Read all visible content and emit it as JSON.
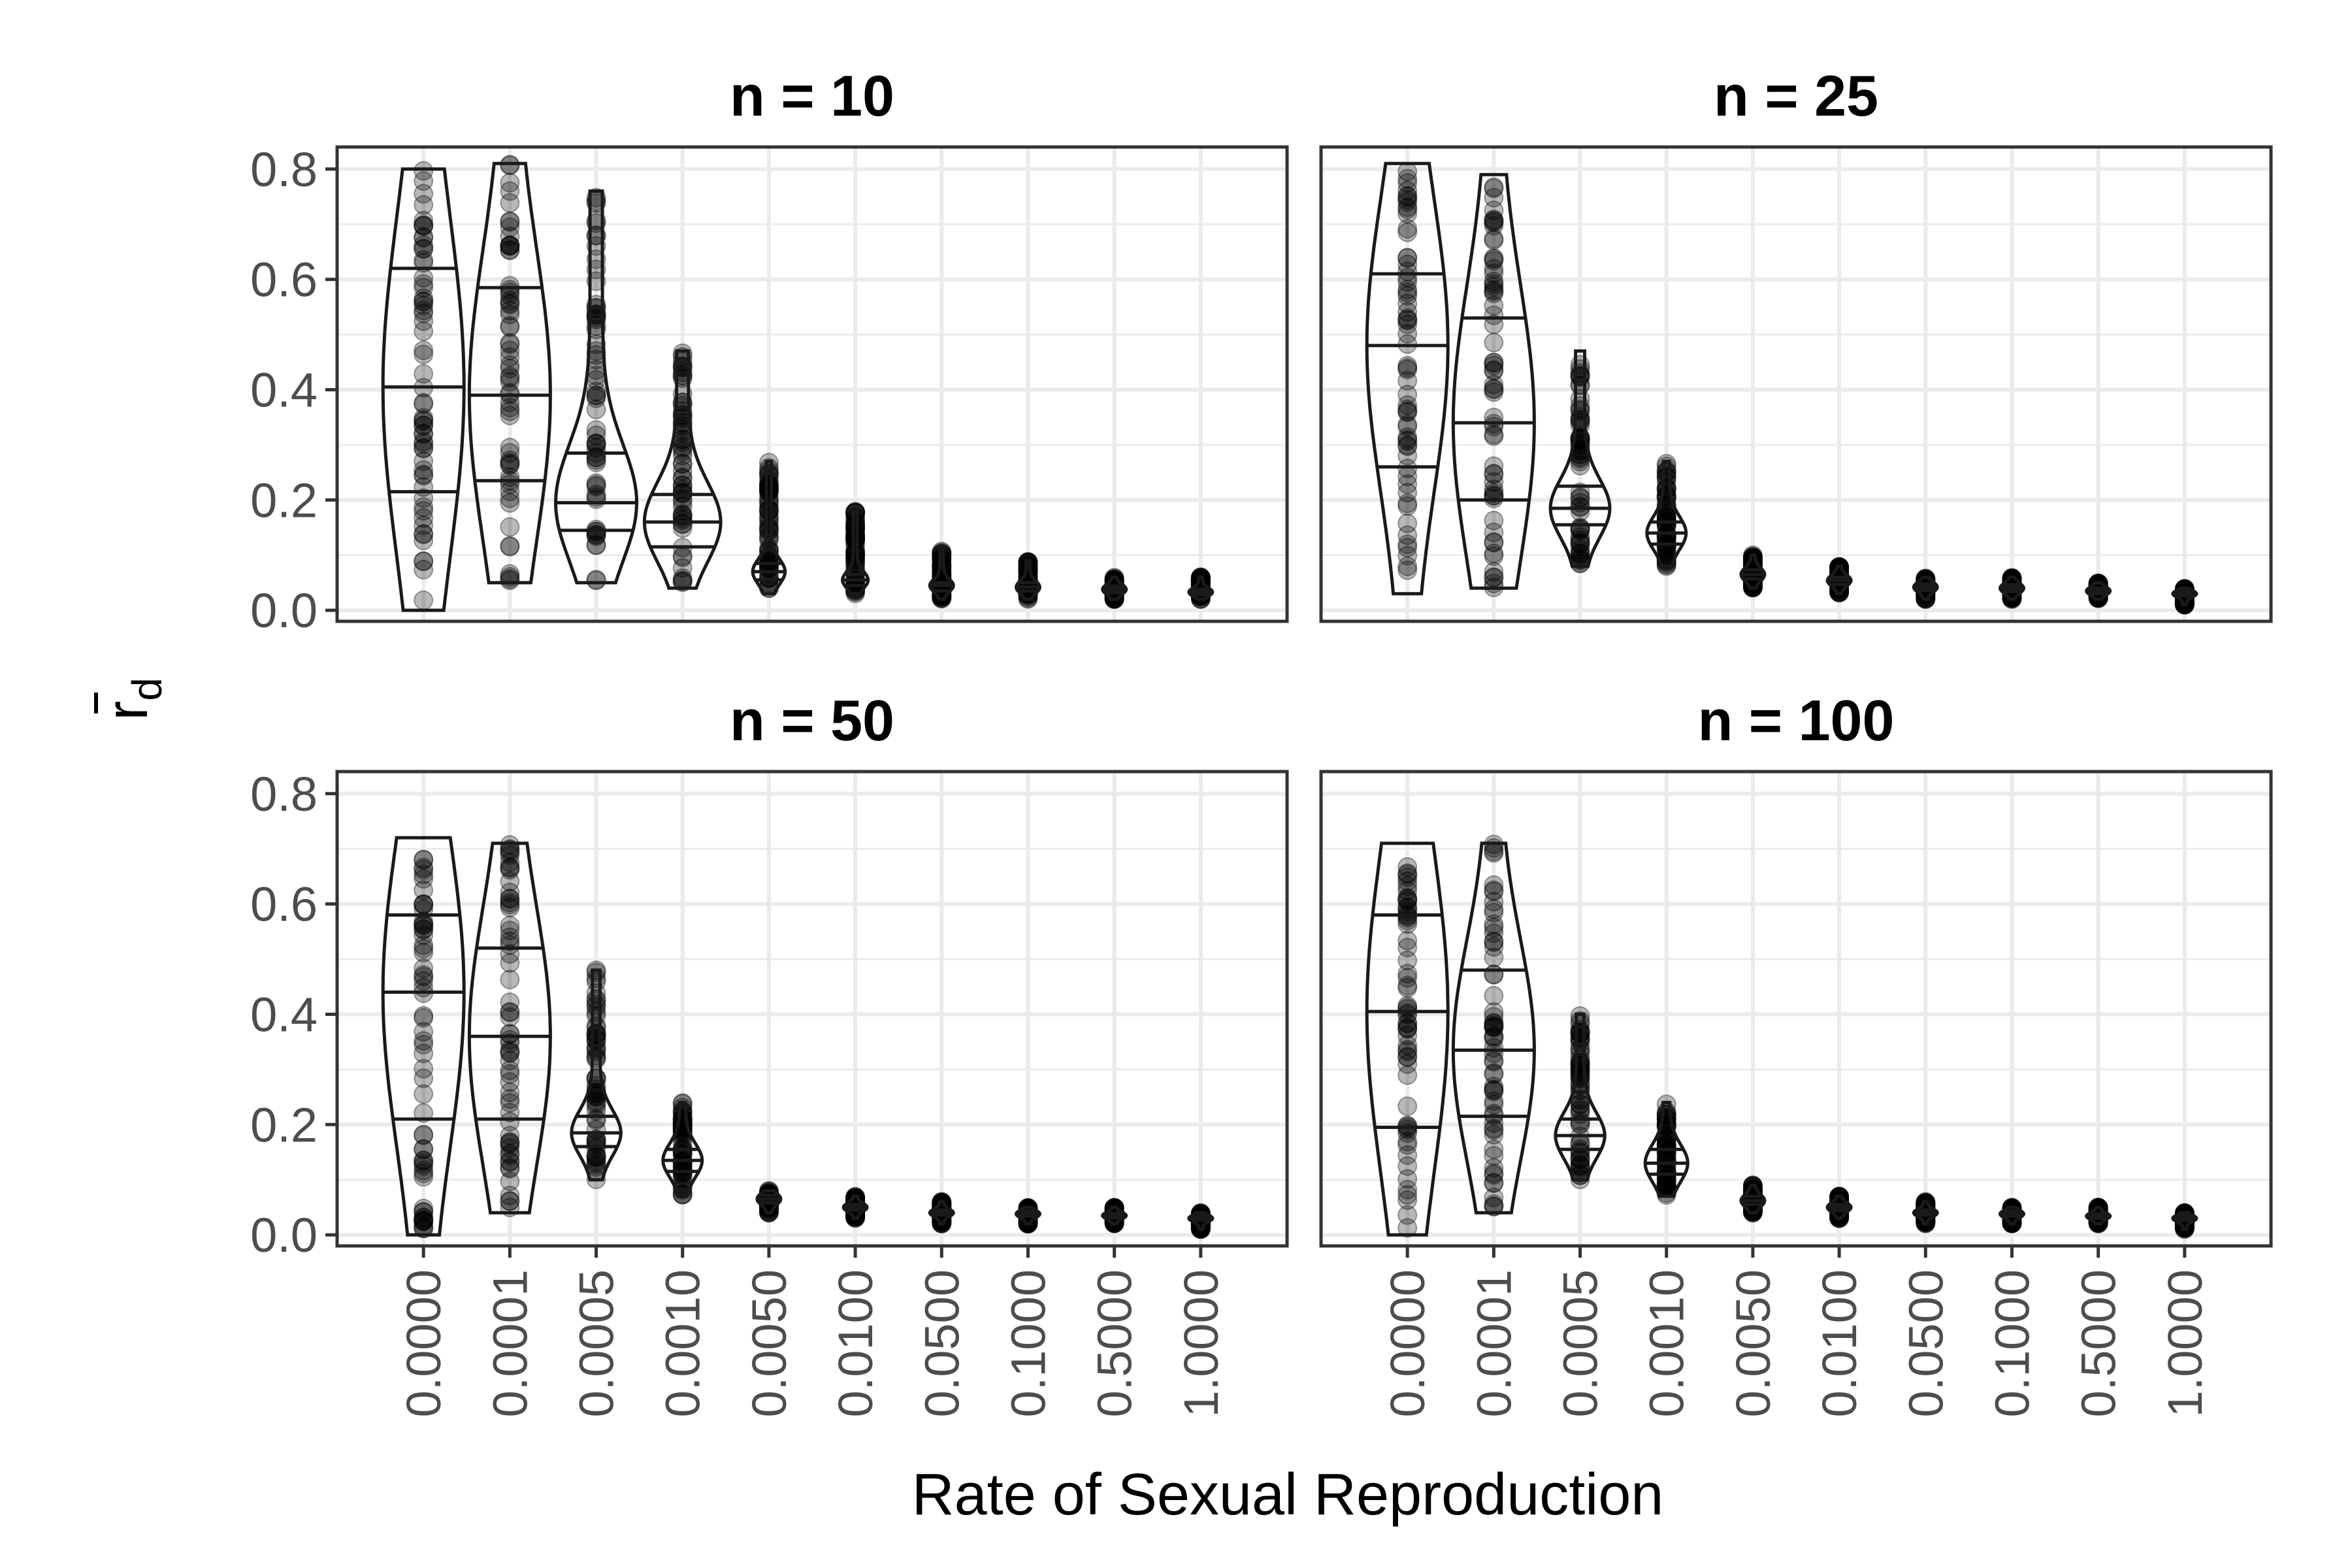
{
  "chart_data": {
    "type": "violin",
    "xlabel": "Rate of Sexual Reproduction",
    "ylabel": "r",
    "ylabel_subscript": "d",
    "ylim": [
      -0.02,
      0.84
    ],
    "yticks": [
      0.0,
      0.2,
      0.4,
      0.6,
      0.8
    ],
    "ytick_labels": [
      "0.0",
      "0.2",
      "0.4",
      "0.6",
      "0.8"
    ],
    "categories": [
      "0.0000",
      "0.0001",
      "0.0005",
      "0.0010",
      "0.0050",
      "0.0100",
      "0.0500",
      "0.1000",
      "0.5000",
      "1.0000"
    ],
    "grid": true,
    "legend": "none",
    "colors": {
      "violin_stroke": "#1a1a1a",
      "point": "#000000",
      "grid": "#ebebeb",
      "panel_border": "#333333",
      "text": "#4d4d4d"
    },
    "panels": [
      {
        "title": "n = 10",
        "violins": [
          {
            "min": 0.0,
            "max": 0.8,
            "quantiles": [
              0.215,
              0.405,
              0.62
            ]
          },
          {
            "min": 0.05,
            "max": 0.81,
            "quantiles": [
              0.235,
              0.39,
              0.585
            ]
          },
          {
            "min": 0.05,
            "max": 0.76,
            "quantiles": [
              0.145,
              0.195,
              0.285
            ]
          },
          {
            "min": 0.04,
            "max": 0.47,
            "quantiles": [
              0.115,
              0.16,
              0.21
            ]
          },
          {
            "min": 0.03,
            "max": 0.27,
            "quantiles": [
              0.055,
              0.07,
              0.085
            ]
          },
          {
            "min": 0.03,
            "max": 0.18,
            "quantiles": [
              0.045,
              0.055,
              0.065
            ]
          },
          {
            "min": 0.02,
            "max": 0.11,
            "quantiles": [
              0.035,
              0.045,
              0.05
            ]
          },
          {
            "min": 0.02,
            "max": 0.09,
            "quantiles": [
              0.035,
              0.042,
              0.05
            ]
          },
          {
            "min": 0.02,
            "max": 0.06,
            "quantiles": [
              0.032,
              0.038,
              0.044
            ]
          },
          {
            "min": 0.02,
            "max": 0.06,
            "quantiles": [
              0.028,
              0.033,
              0.038
            ]
          }
        ]
      },
      {
        "title": "n = 25",
        "violins": [
          {
            "min": 0.03,
            "max": 0.81,
            "quantiles": [
              0.26,
              0.48,
              0.61
            ]
          },
          {
            "min": 0.04,
            "max": 0.79,
            "quantiles": [
              0.2,
              0.34,
              0.53
            ]
          },
          {
            "min": 0.08,
            "max": 0.47,
            "quantiles": [
              0.155,
              0.185,
              0.225
            ]
          },
          {
            "min": 0.08,
            "max": 0.27,
            "quantiles": [
              0.12,
              0.14,
              0.16
            ]
          },
          {
            "min": 0.04,
            "max": 0.1,
            "quantiles": [
              0.057,
              0.065,
              0.073
            ]
          },
          {
            "min": 0.03,
            "max": 0.08,
            "quantiles": [
              0.047,
              0.054,
              0.06
            ]
          },
          {
            "min": 0.02,
            "max": 0.06,
            "quantiles": [
              0.036,
              0.042,
              0.048
            ]
          },
          {
            "min": 0.02,
            "max": 0.06,
            "quantiles": [
              0.034,
              0.04,
              0.046
            ]
          },
          {
            "min": 0.02,
            "max": 0.05,
            "quantiles": [
              0.03,
              0.035,
              0.04
            ]
          },
          {
            "min": 0.01,
            "max": 0.04,
            "quantiles": [
              0.026,
              0.03,
              0.034
            ]
          }
        ]
      },
      {
        "title": "n = 50",
        "violins": [
          {
            "min": 0.0,
            "max": 0.72,
            "quantiles": [
              0.21,
              0.44,
              0.58
            ]
          },
          {
            "min": 0.04,
            "max": 0.71,
            "quantiles": [
              0.21,
              0.36,
              0.52
            ]
          },
          {
            "min": 0.1,
            "max": 0.48,
            "quantiles": [
              0.16,
              0.185,
              0.215
            ]
          },
          {
            "min": 0.07,
            "max": 0.24,
            "quantiles": [
              0.115,
              0.135,
              0.155
            ]
          },
          {
            "min": 0.04,
            "max": 0.08,
            "quantiles": [
              0.058,
              0.065,
              0.072
            ]
          },
          {
            "min": 0.03,
            "max": 0.07,
            "quantiles": [
              0.045,
              0.05,
              0.055
            ]
          },
          {
            "min": 0.02,
            "max": 0.06,
            "quantiles": [
              0.036,
              0.04,
              0.045
            ]
          },
          {
            "min": 0.02,
            "max": 0.05,
            "quantiles": [
              0.034,
              0.038,
              0.043
            ]
          },
          {
            "min": 0.02,
            "max": 0.05,
            "quantiles": [
              0.031,
              0.035,
              0.039
            ]
          },
          {
            "min": 0.01,
            "max": 0.04,
            "quantiles": [
              0.027,
              0.03,
              0.034
            ]
          }
        ]
      },
      {
        "title": "n = 100",
        "violins": [
          {
            "min": 0.0,
            "max": 0.71,
            "quantiles": [
              0.195,
              0.405,
              0.58
            ]
          },
          {
            "min": 0.04,
            "max": 0.71,
            "quantiles": [
              0.215,
              0.335,
              0.48
            ]
          },
          {
            "min": 0.1,
            "max": 0.4,
            "quantiles": [
              0.155,
              0.18,
              0.21
            ]
          },
          {
            "min": 0.07,
            "max": 0.24,
            "quantiles": [
              0.11,
              0.13,
              0.155
            ]
          },
          {
            "min": 0.04,
            "max": 0.09,
            "quantiles": [
              0.055,
              0.062,
              0.07
            ]
          },
          {
            "min": 0.03,
            "max": 0.07,
            "quantiles": [
              0.044,
              0.05,
              0.055
            ]
          },
          {
            "min": 0.02,
            "max": 0.06,
            "quantiles": [
              0.036,
              0.04,
              0.045
            ]
          },
          {
            "min": 0.02,
            "max": 0.05,
            "quantiles": [
              0.034,
              0.038,
              0.043
            ]
          },
          {
            "min": 0.02,
            "max": 0.05,
            "quantiles": [
              0.03,
              0.034,
              0.038
            ]
          },
          {
            "min": 0.01,
            "max": 0.04,
            "quantiles": [
              0.026,
              0.03,
              0.034
            ]
          }
        ]
      }
    ]
  }
}
